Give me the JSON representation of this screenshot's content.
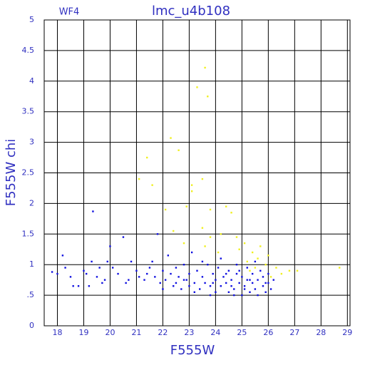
{
  "chart_data": {
    "type": "scatter",
    "title": "lmc_u4b108",
    "subtitle": "WF4",
    "x_label": "F555W",
    "y_label": "F555W chi",
    "xlim": [
      17.5,
      29.1
    ],
    "ylim": [
      0,
      5
    ],
    "xticks": [
      18,
      19,
      20,
      21,
      22,
      23,
      24,
      25,
      26,
      27,
      28,
      29
    ],
    "yticks": [
      0,
      {
        "value": 0.5,
        "label": ".5"
      },
      1,
      1.5,
      2,
      2.5,
      3,
      3.5,
      4,
      4.5,
      5
    ],
    "grid": true,
    "series": [
      {
        "color": "#1010e0",
        "x": [
          17.8,
          18.0,
          18.2,
          18.3,
          18.5,
          18.6,
          18.8,
          19.0,
          19.1,
          19.2,
          19.3,
          19.35,
          19.5,
          19.6,
          19.8,
          19.9,
          20.0,
          20.1,
          20.3,
          20.5,
          20.6,
          20.8,
          21.0,
          21.1,
          21.3,
          21.5,
          21.6,
          21.7,
          21.8,
          21.9,
          22.0,
          22.1,
          22.2,
          22.3,
          22.4,
          22.5,
          22.6,
          22.7,
          22.8,
          22.9,
          23.0,
          23.0,
          23.1,
          23.2,
          23.3,
          23.4,
          23.5,
          23.6,
          23.7,
          23.8,
          23.9,
          24.0,
          24.0,
          24.1,
          24.2,
          24.3,
          24.4,
          24.5,
          24.5,
          24.6,
          24.7,
          24.8,
          24.9,
          25.0,
          25.0,
          25.1,
          25.2,
          25.2,
          25.3,
          25.4,
          25.4,
          25.5,
          25.6,
          25.6,
          25.7,
          25.8,
          25.8,
          25.9,
          26.0,
          26.0,
          26.1,
          26.2,
          23.5,
          24.2,
          24.8,
          25.5,
          23.8,
          24.7,
          22.5,
          22.0,
          23.2,
          24.4,
          25.1,
          25.9,
          24.9,
          23.9,
          24.6,
          25.3,
          22.8,
          21.4,
          20.7,
          19.7
        ],
        "values": [
          0.88,
          0.85,
          1.15,
          0.95,
          0.8,
          0.65,
          0.65,
          0.9,
          0.85,
          0.65,
          1.05,
          1.87,
          0.8,
          0.95,
          0.75,
          1.05,
          1.3,
          0.95,
          0.85,
          1.45,
          0.7,
          1.05,
          0.9,
          0.8,
          0.75,
          0.95,
          1.05,
          0.8,
          1.5,
          0.7,
          0.9,
          0.75,
          1.15,
          0.85,
          0.65,
          0.95,
          0.8,
          0.6,
          1.0,
          0.75,
          0.85,
          0.65,
          1.2,
          0.7,
          0.9,
          0.6,
          0.8,
          0.7,
          1.0,
          0.65,
          0.85,
          0.55,
          0.75,
          0.95,
          0.65,
          0.8,
          0.7,
          0.55,
          0.9,
          0.75,
          0.6,
          0.85,
          0.7,
          0.5,
          0.8,
          0.65,
          0.95,
          0.75,
          0.55,
          0.7,
          0.85,
          0.6,
          0.75,
          0.5,
          0.9,
          0.65,
          0.8,
          0.55,
          0.7,
          0.85,
          0.6,
          0.75,
          1.05,
          1.1,
          1.0,
          1.05,
          0.5,
          0.5,
          0.7,
          0.6,
          0.55,
          0.85,
          0.6,
          0.7,
          0.9,
          0.7,
          0.65,
          0.75,
          0.75,
          0.85,
          0.75,
          0.7
        ]
      },
      {
        "color": "#f0f020",
        "x": [
          23.6,
          23.3,
          23.7,
          22.3,
          22.6,
          21.4,
          21.6,
          23.1,
          23.1,
          23.5,
          21.1,
          22.1,
          22.9,
          23.8,
          24.4,
          24.6,
          23.5,
          23.8,
          24.2,
          24.8,
          25.1,
          25.4,
          25.6,
          25.9,
          26.3,
          26.5,
          26.8,
          27.1,
          28.7,
          25.5,
          25.2,
          24.9,
          25.7,
          26.0,
          25.3,
          26.1,
          23.6,
          24.1,
          22.8,
          22.4
        ],
        "values": [
          4.22,
          3.9,
          3.75,
          3.07,
          2.87,
          2.75,
          2.3,
          2.3,
          2.2,
          2.4,
          2.4,
          1.9,
          1.95,
          1.9,
          1.95,
          1.85,
          1.6,
          1.45,
          1.5,
          1.45,
          1.35,
          1.2,
          1.1,
          1.0,
          0.95,
          0.85,
          0.9,
          0.9,
          0.95,
          0.95,
          1.05,
          1.25,
          1.3,
          1.15,
          0.9,
          0.8,
          1.3,
          1.2,
          1.35,
          1.55
        ]
      }
    ]
  }
}
